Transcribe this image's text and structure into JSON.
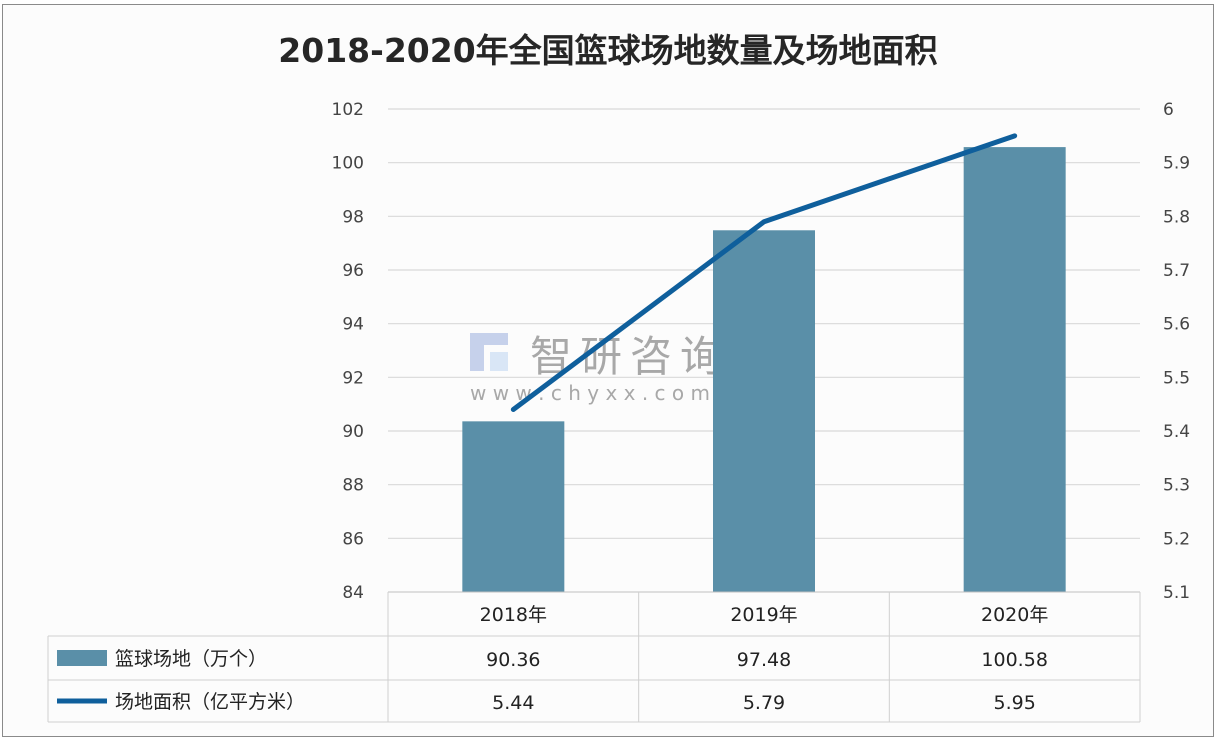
{
  "chart_data": {
    "type": "bar+line",
    "title": "2018-2020年全国篮球场地数量及场地面积",
    "categories": [
      "2018年",
      "2019年",
      "2020年"
    ],
    "series": [
      {
        "name": "篮球场地（万个）",
        "type": "bar",
        "axis": "left",
        "color": "#5a8fa8",
        "values": [
          90.36,
          97.48,
          100.58
        ]
      },
      {
        "name": "场地面积（亿平方米）",
        "type": "line",
        "axis": "right",
        "color": "#0f5f9c",
        "values": [
          5.44,
          5.79,
          5.95
        ]
      }
    ],
    "left_axis": {
      "ylim": [
        84,
        102
      ],
      "ticks": [
        "84",
        "86",
        "88",
        "90",
        "92",
        "94",
        "96",
        "98",
        "100",
        "102"
      ]
    },
    "right_axis": {
      "ylim": [
        5.1,
        6.0
      ],
      "ticks": [
        "5.1",
        "5.2",
        "5.3",
        "5.4",
        "5.5",
        "5.6",
        "5.7",
        "5.8",
        "5.9",
        "6"
      ]
    },
    "grid": true,
    "legend": "data table below plot",
    "table": {
      "header": [
        "2018年",
        "2019年",
        "2020年"
      ],
      "rows": [
        {
          "label": "篮球场地（万个）",
          "values": [
            "90.36",
            "97.48",
            "100.58"
          ]
        },
        {
          "label": "场地面积（亿平方米）",
          "values": [
            "5.44",
            "5.79",
            "5.95"
          ]
        }
      ]
    },
    "watermark": {
      "brand": "智研咨询",
      "url": "w w w . c h y x x . c o m"
    }
  }
}
